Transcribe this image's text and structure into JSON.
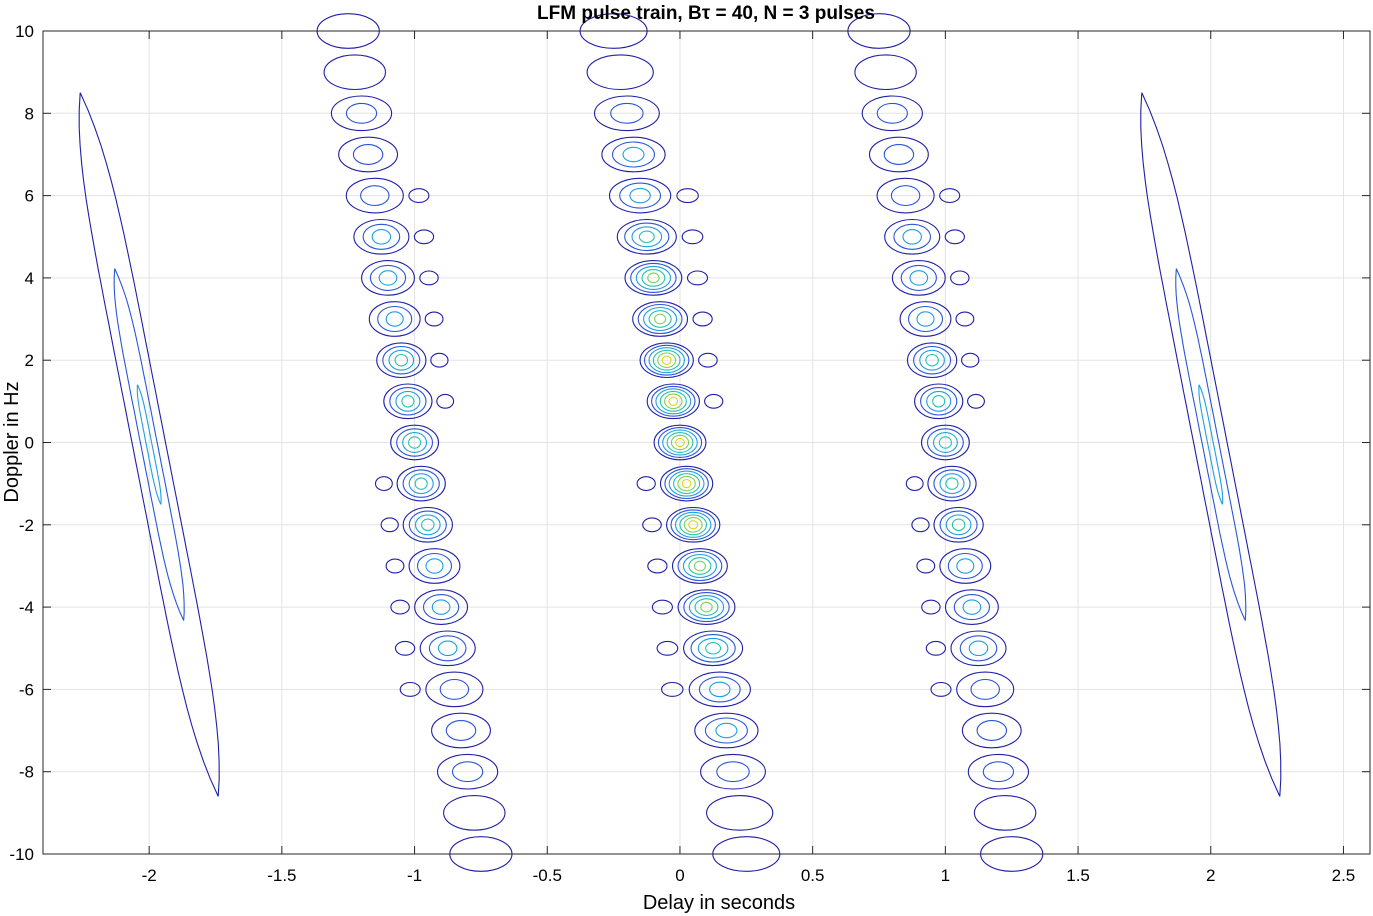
{
  "chart_data": {
    "type": "contour",
    "title": "LFM pulse train, Bτ = 40, N = 3 pulses",
    "xlabel": "Delay in seconds",
    "ylabel": "Doppler in Hz",
    "xlim": [
      -2.4,
      2.6
    ],
    "ylim": [
      -10,
      10
    ],
    "xticks": [
      -2,
      -1.5,
      -1,
      -0.5,
      0,
      0.5,
      1,
      1.5,
      2,
      2.5
    ],
    "xtick_labels": [
      "-2",
      "-1.5",
      "-1",
      "-0.5",
      "0",
      "0.5",
      "1",
      "1.5",
      "2",
      "2.5"
    ],
    "yticks": [
      -10,
      -8,
      -6,
      -4,
      -2,
      0,
      2,
      4,
      6,
      8,
      10
    ],
    "ytick_labels": [
      "-10",
      "-8",
      "-6",
      "-4",
      "-2",
      "0",
      "2",
      "4",
      "6",
      "8",
      "10"
    ],
    "grid": true,
    "colormap": [
      "#1f1fa8",
      "#2a55d8",
      "#1f9ee0",
      "#22c4b0",
      "#7fd35a",
      "#e3d21a"
    ],
    "pulse_period_s": 1,
    "lfm_slope_s_per_hz": -0.025,
    "outer_lobes": [
      {
        "delay": -2,
        "doppler_top": 8.5,
        "doppler_bottom": -8.6
      },
      {
        "delay": 2,
        "doppler_top": 8.5,
        "doppler_bottom": -8.6
      }
    ],
    "main_ridges": [
      {
        "delay_center": -1,
        "max_levels": 4
      },
      {
        "delay_center": 0,
        "max_levels": 6
      },
      {
        "delay_center": 1,
        "max_levels": 4
      }
    ]
  }
}
